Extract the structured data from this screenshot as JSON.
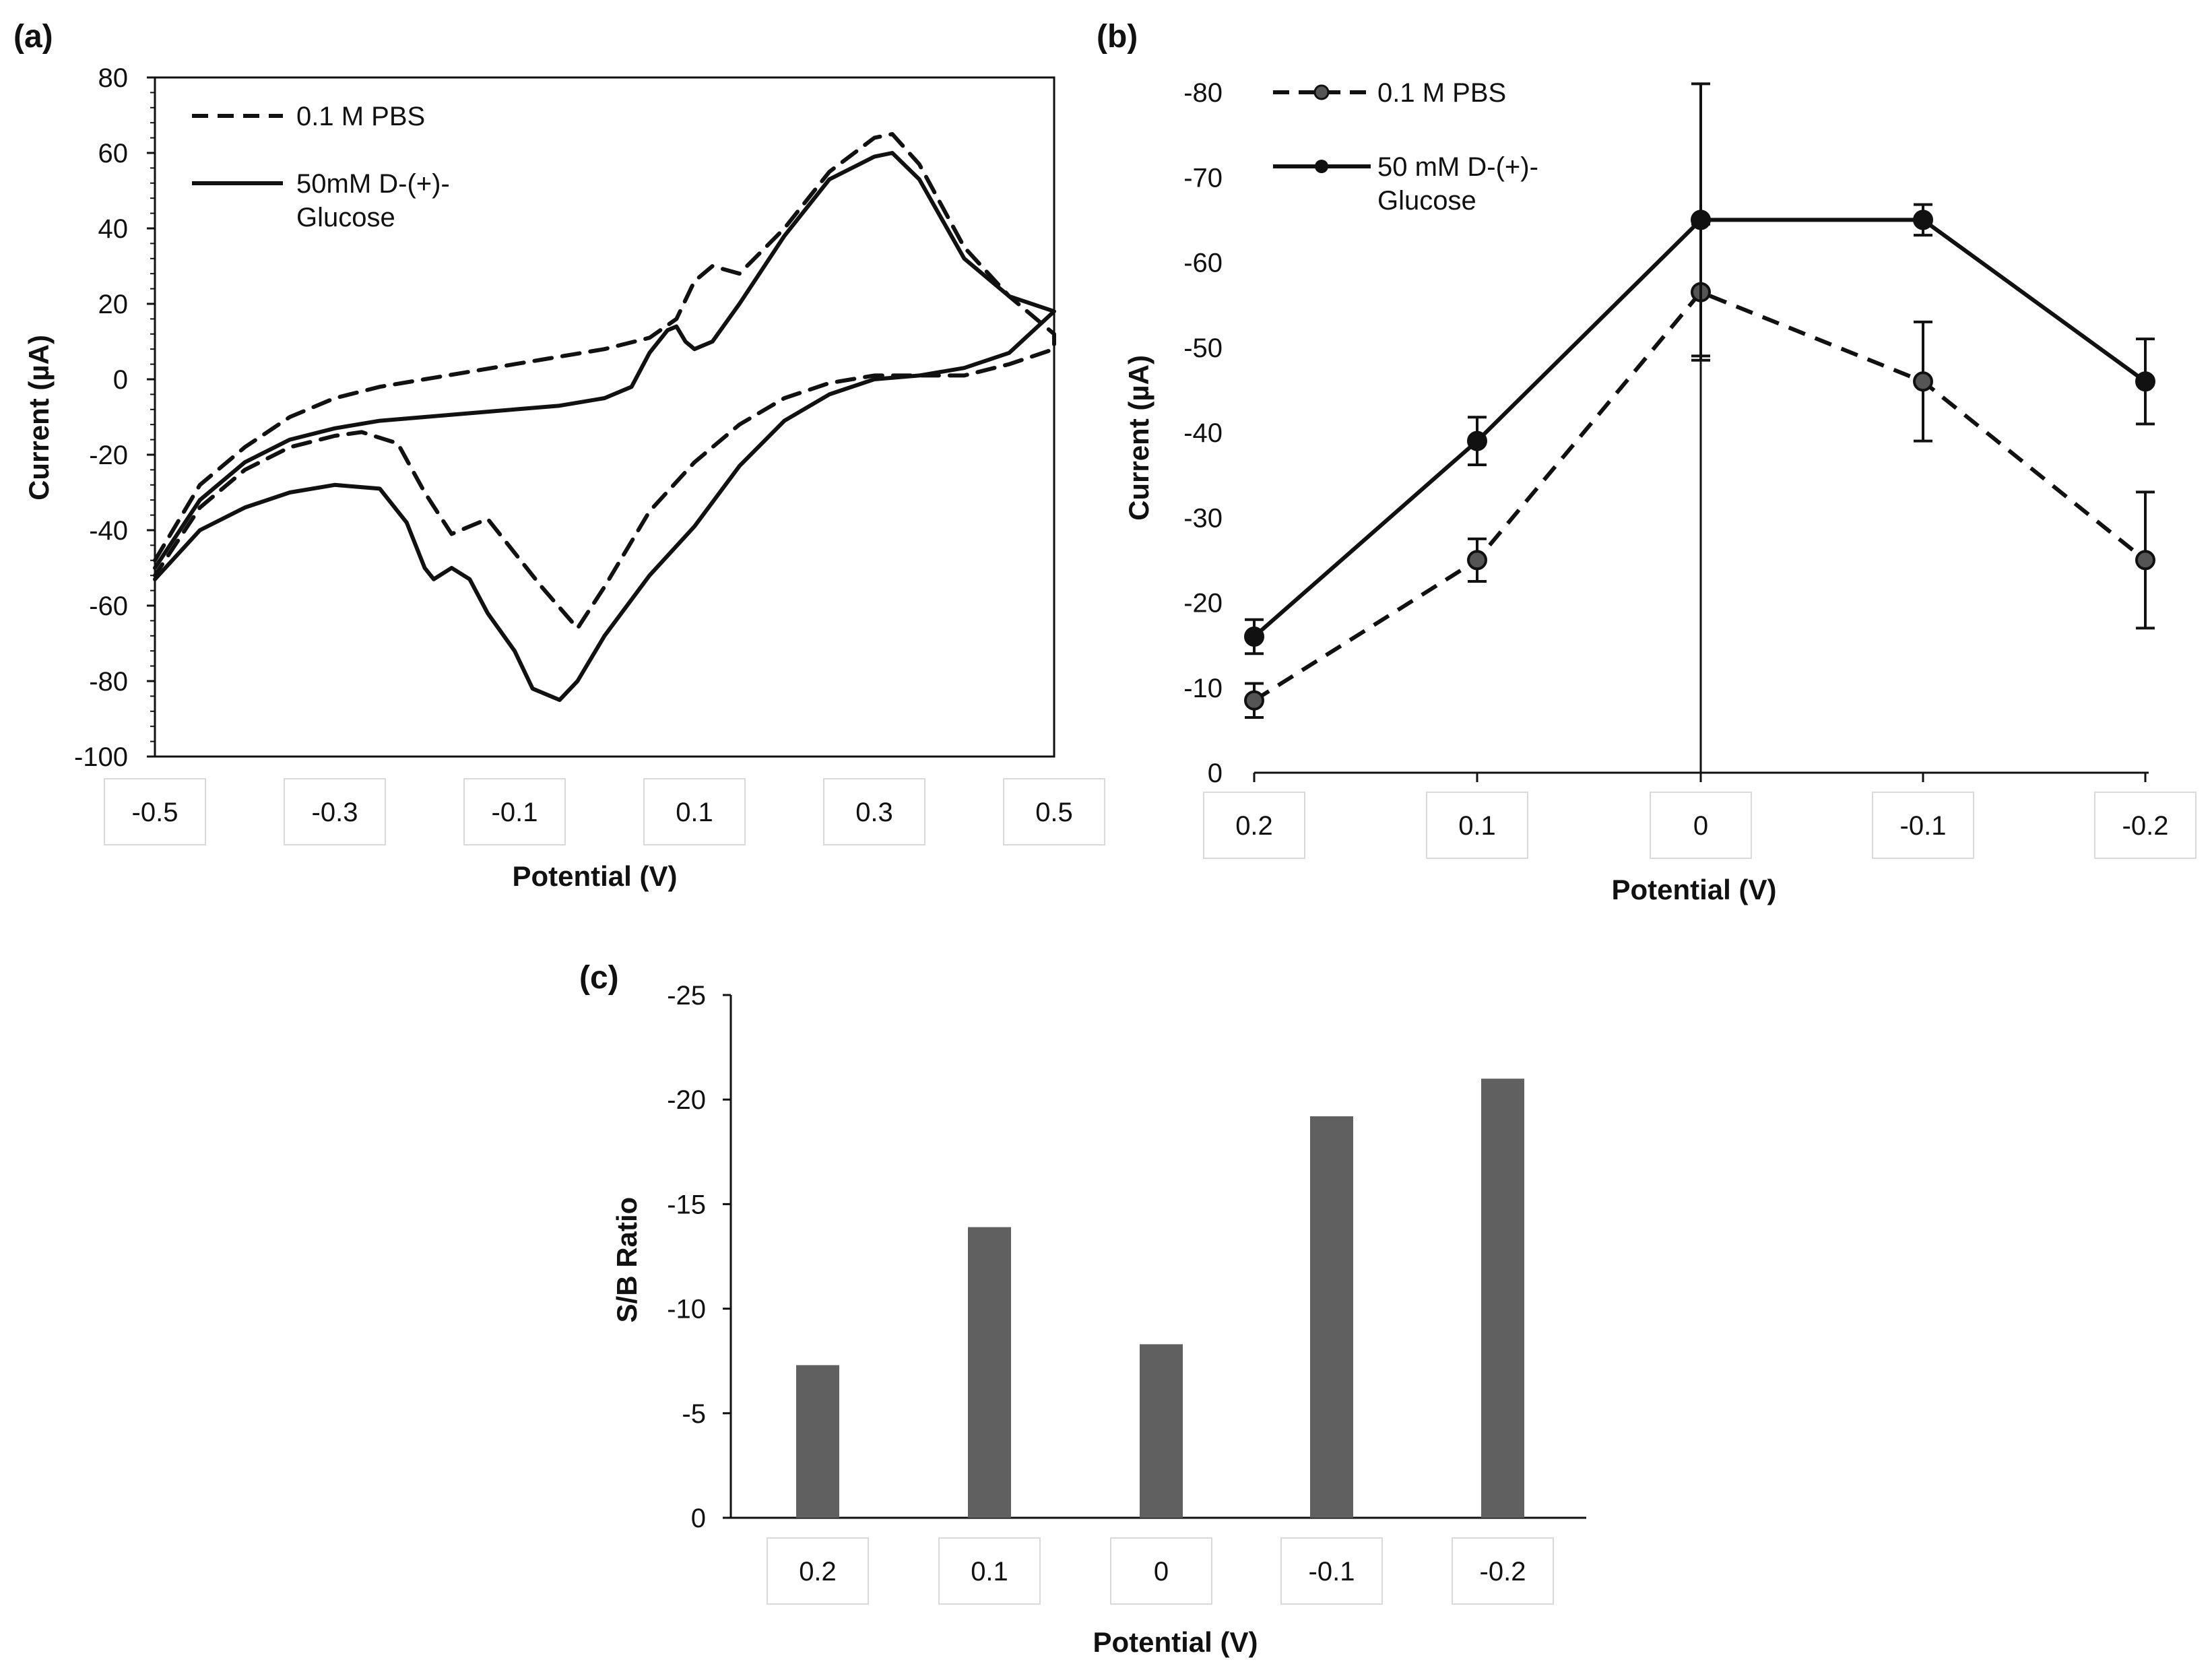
{
  "chart_data": [
    {
      "id": "a",
      "type": "line",
      "panel_label": "(a)",
      "xlabel": "Potential (V)",
      "ylabel": "Current (µA)",
      "xlim": [
        -0.5,
        0.5
      ],
      "ylim": [
        -100,
        80
      ],
      "x_ticks": [
        "-0.5",
        "-0.3",
        "-0.1",
        "0.1",
        "0.3",
        "0.5"
      ],
      "y_ticks": [
        "80",
        "60",
        "40",
        "20",
        "0",
        "-20",
        "-40",
        "-60",
        "-80",
        "-100"
      ],
      "legend_position": "top-left",
      "series": [
        {
          "name": "0.1 M PBS",
          "style": "dashed",
          "x": [
            -0.5,
            -0.45,
            -0.4,
            -0.35,
            -0.3,
            -0.25,
            -0.2,
            -0.15,
            -0.1,
            -0.05,
            0.0,
            0.05,
            0.08,
            0.1,
            0.12,
            0.15,
            0.2,
            0.25,
            0.3,
            0.32,
            0.35,
            0.4,
            0.45,
            0.5,
            0.5,
            0.45,
            0.4,
            0.35,
            0.3,
            0.25,
            0.2,
            0.15,
            0.1,
            0.05,
            0.0,
            -0.03,
            -0.07,
            -0.1,
            -0.13,
            -0.15,
            -0.17,
            -0.2,
            -0.23,
            -0.27,
            -0.3,
            -0.35,
            -0.4,
            -0.45,
            -0.5
          ],
          "y": [
            -48,
            -28,
            -18,
            -10,
            -5,
            -2,
            0,
            2,
            4,
            6,
            8,
            11,
            16,
            26,
            30,
            28,
            40,
            55,
            64,
            65,
            57,
            35,
            22,
            12,
            8,
            4,
            1,
            1,
            1,
            -1,
            -5,
            -12,
            -22,
            -35,
            -55,
            -66,
            -55,
            -46,
            -37,
            -39,
            -41,
            -30,
            -17,
            -14,
            -15,
            -18,
            -24,
            -34,
            -52
          ]
        },
        {
          "name": "50mM D-(+)-Glucose",
          "style": "solid",
          "x": [
            -0.5,
            -0.45,
            -0.4,
            -0.35,
            -0.3,
            -0.25,
            -0.2,
            -0.15,
            -0.1,
            -0.05,
            0.0,
            0.03,
            0.05,
            0.07,
            0.08,
            0.09,
            0.1,
            0.12,
            0.15,
            0.2,
            0.25,
            0.3,
            0.32,
            0.35,
            0.4,
            0.45,
            0.5,
            0.5,
            0.45,
            0.4,
            0.35,
            0.3,
            0.25,
            0.2,
            0.15,
            0.1,
            0.05,
            0.0,
            -0.03,
            -0.05,
            -0.08,
            -0.1,
            -0.13,
            -0.15,
            -0.17,
            -0.19,
            -0.2,
            -0.22,
            -0.25,
            -0.3,
            -0.35,
            -0.4,
            -0.45,
            -0.5
          ],
          "y": [
            -50,
            -32,
            -22,
            -16,
            -13,
            -11,
            -10,
            -9,
            -8,
            -7,
            -5,
            -2,
            7,
            13,
            14,
            10,
            8,
            10,
            20,
            38,
            53,
            59,
            60,
            53,
            32,
            22,
            18,
            18,
            7,
            3,
            1,
            0,
            -4,
            -11,
            -23,
            -39,
            -52,
            -68,
            -80,
            -85,
            -82,
            -72,
            -62,
            -53,
            -50,
            -53,
            -50,
            -38,
            -29,
            -28,
            -30,
            -34,
            -40,
            -53
          ]
        }
      ]
    },
    {
      "id": "b",
      "type": "line",
      "panel_label": "(b)",
      "xlabel": "Potential (V)",
      "ylabel": "Current (µA)",
      "categories": [
        "0.2",
        "0.1",
        "0",
        "-0.1",
        "-0.2"
      ],
      "y_ticks": [
        "-80",
        "-70",
        "-60",
        "-50",
        "-40",
        "-30",
        "-20",
        "-10",
        "0"
      ],
      "ylim": [
        0,
        -80
      ],
      "legend_position": "top-left",
      "series": [
        {
          "name": "0.1 M PBS",
          "style": "dashed",
          "values": [
            -8.5,
            -25,
            -56.5,
            -46,
            -25
          ],
          "errors": [
            2,
            2.5,
            8,
            7,
            8
          ]
        },
        {
          "name": "50 mM D-(+)-\nGlucose",
          "style": "solid",
          "values": [
            -16,
            -39,
            -65,
            -65,
            -46
          ],
          "errors": [
            2,
            2.8,
            16,
            1.8,
            5
          ]
        }
      ]
    },
    {
      "id": "c",
      "type": "bar",
      "panel_label": "(c)",
      "xlabel": "Potential (V)",
      "ylabel": "S/B Ratio",
      "categories": [
        "0.2",
        "0.1",
        "0",
        "-0.1",
        "-0.2"
      ],
      "values": [
        -7.3,
        -13.9,
        -8.3,
        -19.2,
        -21
      ],
      "y_ticks": [
        "-25",
        "-20",
        "-15",
        "-10",
        "-5",
        "0"
      ],
      "ylim": [
        0,
        -25
      ],
      "bar_color": "#606060"
    }
  ]
}
